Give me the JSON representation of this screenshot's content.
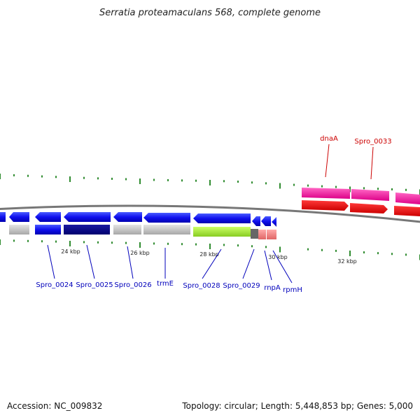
{
  "title": "Serratia proteamaculans 568, complete genome",
  "footer": {
    "accession": "Accession: NC_009832",
    "summary": "Topology: circular; Length: 5,448,853 bp; Genes: 5,000"
  },
  "scale_labels": [
    "24 kbp",
    "26 kbp",
    "28 kbp",
    "30 kbp",
    "32 kbp"
  ],
  "gene_labels": [
    {
      "name": "Spro_0024",
      "color": "#0000bb"
    },
    {
      "name": "Spro_0025",
      "color": "#0000bb"
    },
    {
      "name": "Spro_0026",
      "color": "#0000bb"
    },
    {
      "name": "trmE",
      "color": "#0000bb"
    },
    {
      "name": "Spro_0028",
      "color": "#0000bb"
    },
    {
      "name": "Spro_0029",
      "color": "#0000bb"
    },
    {
      "name": "rnpA",
      "color": "#0000bb"
    },
    {
      "name": "rpmH",
      "color": "#0000bb"
    },
    {
      "name": "dnaA",
      "color": "#cc0000"
    },
    {
      "name": "Spro_0033",
      "color": "#cc0000"
    }
  ],
  "colors": {
    "backbone": "#777777",
    "tick": "#2e8b2e",
    "reverse_strand": "#1010ee",
    "forward_strand_top": "#ff2fa8",
    "forward_strand_bottom": "#ee0000"
  }
}
